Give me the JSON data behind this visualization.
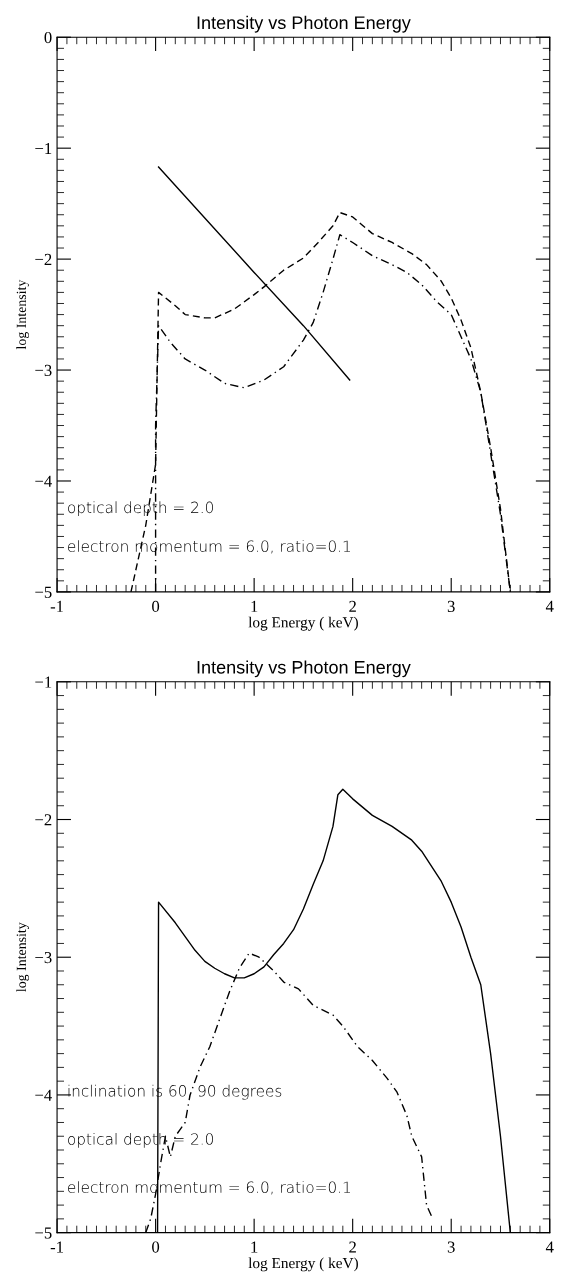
{
  "chart_data": [
    {
      "type": "line",
      "title": "Intensity vs Photon Energy",
      "xlabel": "log Energy ( keV)",
      "ylabel": "log Intensity",
      "xlim": [
        -1,
        4
      ],
      "ylim": [
        -5,
        0
      ],
      "xticks": [
        -1,
        0,
        1,
        2,
        3,
        4
      ],
      "yticks": [
        {
          "value": -5,
          "label": "−5"
        },
        {
          "value": -4,
          "label": "−4"
        },
        {
          "value": -3,
          "label": "−3"
        },
        {
          "value": -2,
          "label": "−2"
        },
        {
          "value": -1,
          "label": "−1"
        },
        0
      ],
      "grid": false,
      "legend": false,
      "annotations": [
        "optical depth = 2.0",
        "electron momentum = 6.0, ratio=0.1"
      ],
      "series": [
        {
          "color": "#000000",
          "line_style": "solid",
          "x": [
            0.03,
            1.0,
            1.5,
            1.97
          ],
          "values": [
            -1.17,
            -2.12,
            -2.6,
            -3.09
          ]
        },
        {
          "color": "#000000",
          "line_style": "dashed",
          "x": [
            -0.25,
            -0.1,
            0.0,
            0.03,
            0.2,
            0.3,
            0.5,
            0.6,
            0.8,
            1.0,
            1.1,
            1.3,
            1.5,
            1.65,
            1.8,
            1.87,
            2.0,
            2.2,
            2.4,
            2.6,
            2.75,
            2.9,
            3.0,
            3.1,
            3.2,
            3.3,
            3.4,
            3.5,
            3.6
          ],
          "values": [
            -5.0,
            -4.4,
            -3.85,
            -2.3,
            -2.42,
            -2.5,
            -2.53,
            -2.53,
            -2.45,
            -2.32,
            -2.25,
            -2.1,
            -1.99,
            -1.85,
            -1.7,
            -1.58,
            -1.62,
            -1.77,
            -1.85,
            -1.95,
            -2.05,
            -2.2,
            -2.35,
            -2.55,
            -2.8,
            -3.2,
            -3.7,
            -4.25,
            -5.0
          ]
        },
        {
          "color": "#000000",
          "line_style": "dashdot",
          "x": [
            0.0,
            0.0,
            0.03,
            0.15,
            0.3,
            0.5,
            0.7,
            0.9,
            1.1,
            1.3,
            1.5,
            1.6,
            1.7,
            1.8,
            1.87,
            2.0,
            2.2,
            2.4,
            2.55,
            2.7,
            2.85,
            3.0,
            3.1,
            3.2,
            3.3,
            3.4,
            3.5,
            3.6
          ],
          "values": [
            -5.0,
            -3.5,
            -2.6,
            -2.75,
            -2.9,
            -3.0,
            -3.12,
            -3.16,
            -3.09,
            -2.97,
            -2.73,
            -2.57,
            -2.3,
            -2.0,
            -1.78,
            -1.85,
            -1.97,
            -2.05,
            -2.12,
            -2.23,
            -2.38,
            -2.5,
            -2.7,
            -2.9,
            -3.2,
            -3.75,
            -4.3,
            -5.0
          ]
        }
      ]
    },
    {
      "type": "line",
      "title": "Intensity vs Photon Energy",
      "xlabel": "log Energy ( keV)",
      "ylabel": "log Intensity",
      "xlim": [
        -1,
        4
      ],
      "ylim": [
        -5,
        -1
      ],
      "xticks": [
        -1,
        0,
        1,
        2,
        3,
        4
      ],
      "yticks": [
        {
          "value": -5,
          "label": "−5"
        },
        {
          "value": -4,
          "label": "−4"
        },
        {
          "value": -3,
          "label": "−3"
        },
        {
          "value": -2,
          "label": "−2"
        },
        {
          "value": -1,
          "label": "−1"
        }
      ],
      "grid": false,
      "legend": false,
      "annotations": [
        "inclination is 60, 90 degrees",
        "optical depth = 2.0",
        "electron momentum = 6.0, ratio=0.1"
      ],
      "series": [
        {
          "color": "#000000",
          "line_style": "solid",
          "x": [
            0.02,
            0.03,
            0.2,
            0.3,
            0.4,
            0.5,
            0.6,
            0.7,
            0.8,
            0.9,
            1.0,
            1.1,
            1.2,
            1.3,
            1.4,
            1.5,
            1.6,
            1.7,
            1.8,
            1.85,
            1.9,
            2.0,
            2.2,
            2.4,
            2.6,
            2.7,
            2.9,
            3.0,
            3.1,
            3.2,
            3.3,
            3.4,
            3.5,
            3.6
          ],
          "values": [
            -5.0,
            -2.6,
            -2.75,
            -2.85,
            -2.95,
            -3.03,
            -3.08,
            -3.12,
            -3.15,
            -3.15,
            -3.12,
            -3.07,
            -2.98,
            -2.9,
            -2.8,
            -2.65,
            -2.47,
            -2.3,
            -2.05,
            -1.82,
            -1.78,
            -1.85,
            -1.97,
            -2.05,
            -2.15,
            -2.23,
            -2.45,
            -2.6,
            -2.78,
            -3.0,
            -3.2,
            -3.7,
            -4.3,
            -5.0
          ]
        },
        {
          "color": "#000000",
          "line_style": "dashdot",
          "x": [
            -0.1,
            -0.05,
            0.0,
            0.05,
            0.1,
            0.15,
            0.2,
            0.25,
            0.3,
            0.35,
            0.45,
            0.55,
            0.65,
            0.75,
            0.85,
            0.95,
            1.05,
            1.2,
            1.3,
            1.45,
            1.6,
            1.8,
            1.9,
            2.05,
            2.2,
            2.35,
            2.45,
            2.55,
            2.6,
            2.7,
            2.75,
            2.8
          ],
          "values": [
            -5.0,
            -4.9,
            -4.72,
            -4.5,
            -4.3,
            -4.45,
            -4.3,
            -4.25,
            -4.2,
            -4.0,
            -3.8,
            -3.65,
            -3.45,
            -3.25,
            -3.08,
            -2.97,
            -3.0,
            -3.1,
            -3.18,
            -3.23,
            -3.35,
            -3.42,
            -3.5,
            -3.65,
            -3.75,
            -3.88,
            -3.98,
            -4.15,
            -4.3,
            -4.45,
            -4.8,
            -4.88
          ]
        }
      ]
    }
  ]
}
